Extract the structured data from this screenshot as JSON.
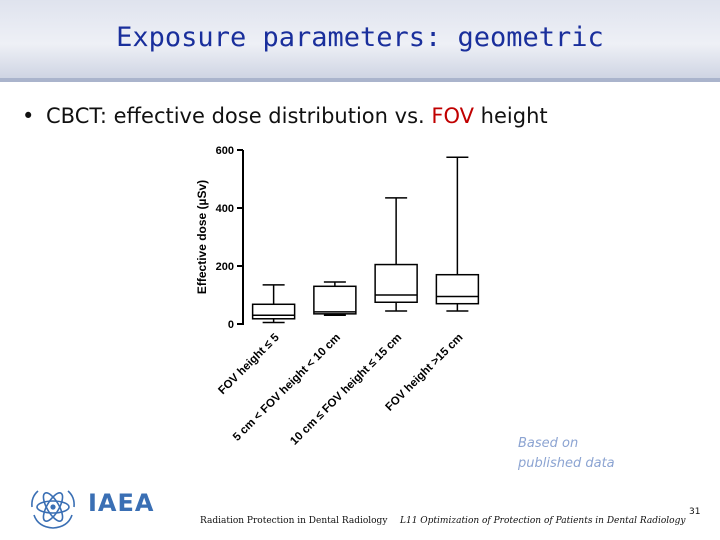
{
  "slide": {
    "title": "Exposure parameters: geometric",
    "bullet_prefix": "CBCT: effective dose distribution vs.",
    "bullet_highlight": "FOV",
    "bullet_suffix": "height",
    "source_note_line1": "Based on",
    "source_note_line2": "published data",
    "footer_left": "Radiation Protection in Dental Radiology",
    "footer_mid": "L11 Optimization of Protection of Patients in Dental Radiology",
    "page_number": "31",
    "logo_text": "IAEA"
  },
  "colors": {
    "title": "#1a2f9c",
    "highlight": "#c00000",
    "note": "#8ca4d2",
    "logo": "#3a6fb4"
  },
  "chart_data": {
    "type": "box",
    "ylabel": "Effective dose (µSv)",
    "ylim": [
      0,
      600
    ],
    "yticks": [
      0,
      200,
      400,
      600
    ],
    "grid": false,
    "categories": [
      "FOV height ≤ 5",
      "5 cm < FOV height < 10 cm",
      "10 cm ≤ FOV height ≤ 15 cm",
      "FOV height >15 cm"
    ],
    "boxes": [
      {
        "min": 5,
        "q1": 18,
        "median": 30,
        "q3": 68,
        "max": 135
      },
      {
        "min": 30,
        "q1": 35,
        "median": 42,
        "q3": 130,
        "max": 145
      },
      {
        "min": 45,
        "q1": 75,
        "median": 100,
        "q3": 205,
        "max": 435
      },
      {
        "min": 45,
        "q1": 70,
        "median": 95,
        "q3": 170,
        "max": 575
      }
    ]
  }
}
